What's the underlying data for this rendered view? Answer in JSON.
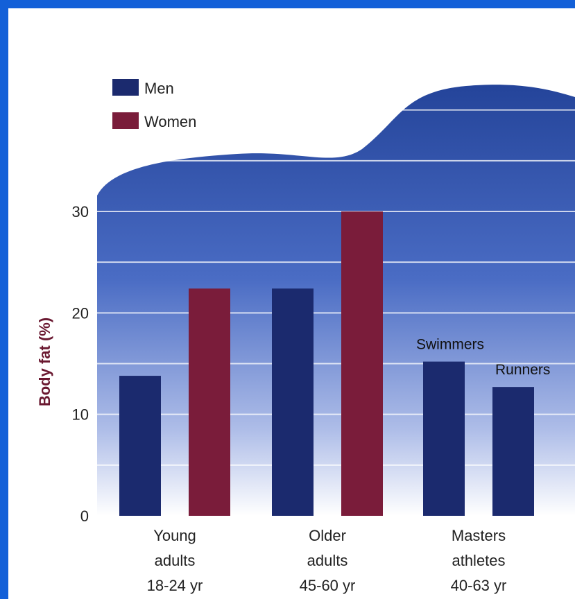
{
  "chart_data": {
    "type": "bar",
    "ylabel": "Body fat (%)",
    "ylim": [
      0,
      30
    ],
    "yticks": [
      0,
      10,
      20,
      30
    ],
    "legend": [
      {
        "name": "Men",
        "color": "#1b2a6e"
      },
      {
        "name": "Women",
        "color": "#7a1c3a"
      }
    ],
    "groups": [
      {
        "label": [
          "Young",
          "adults",
          "18-24 yr"
        ],
        "bars": [
          {
            "series": "Men",
            "value": 13.8
          },
          {
            "series": "Women",
            "value": 22.4
          }
        ]
      },
      {
        "label": [
          "Older",
          "adults",
          "45-60 yr"
        ],
        "bars": [
          {
            "series": "Men",
            "value": 22.4
          },
          {
            "series": "Women",
            "value": 30.0
          }
        ]
      },
      {
        "label": [
          "Masters",
          "athletes",
          "40-63 yr"
        ],
        "bars": [
          {
            "series": "Men",
            "value": 15.2,
            "annotation": "Swimmers"
          },
          {
            "series": "Men",
            "value": 12.7,
            "annotation": "Runners"
          }
        ]
      }
    ],
    "grid": true,
    "legend_position": "top-left"
  }
}
